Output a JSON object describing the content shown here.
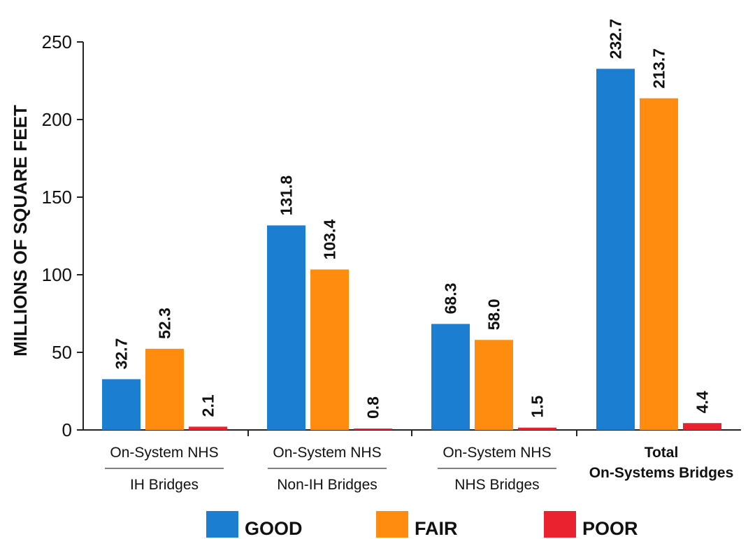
{
  "chart_data": {
    "type": "bar",
    "title": "",
    "ylabel": "MILLIONS OF SQUARE FEET",
    "xlabel": "",
    "ylim": [
      0,
      250
    ],
    "yticks": [
      0,
      50,
      100,
      150,
      200,
      250
    ],
    "grid": false,
    "legend_position": "bottom",
    "categories": [
      {
        "line1": "On-System NHS",
        "line2": "IH Bridges",
        "bold": false
      },
      {
        "line1": "On-System NHS",
        "line2": "Non-IH Bridges",
        "bold": false
      },
      {
        "line1": "On-System NHS",
        "line2": "NHS Bridges",
        "bold": false
      },
      {
        "line1": "Total",
        "line2": "On-Systems Bridges",
        "bold": true
      }
    ],
    "series": [
      {
        "name": "GOOD",
        "color": "#1b7ed1",
        "values": [
          32.7,
          131.8,
          68.3,
          232.7
        ],
        "labels": [
          "32.7",
          "131.8",
          "68.3",
          "232.7"
        ]
      },
      {
        "name": "FAIR",
        "color": "#ff8c0f",
        "values": [
          52.3,
          103.4,
          58.0,
          213.7
        ],
        "labels": [
          "52.3",
          "103.4",
          "58.0",
          "213.7"
        ]
      },
      {
        "name": "POOR",
        "color": "#ea2230",
        "values": [
          2.1,
          0.8,
          1.5,
          4.4
        ],
        "labels": [
          "2.1",
          "0.8",
          "1.5",
          "4.4"
        ]
      }
    ]
  }
}
